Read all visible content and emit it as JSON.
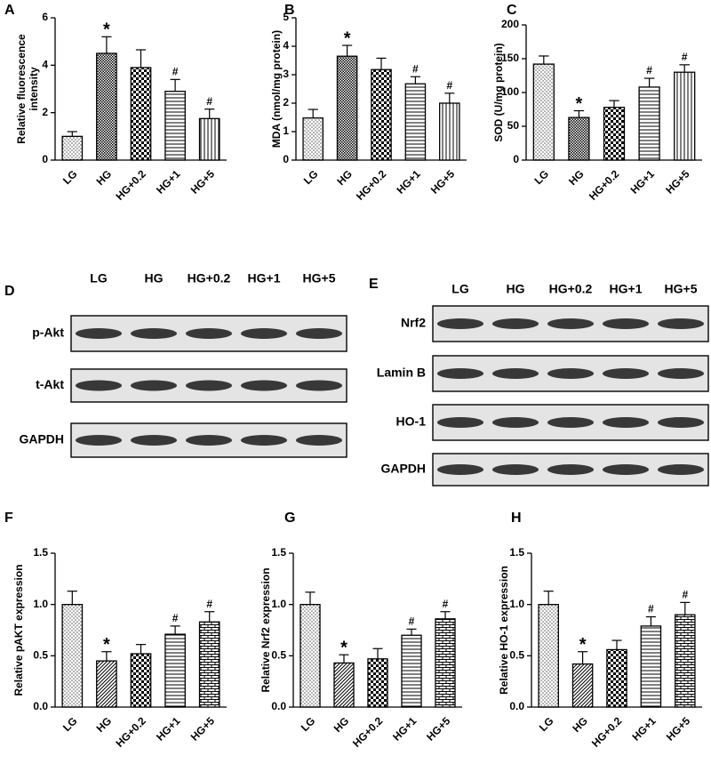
{
  "chart_data": [
    {
      "type": "bar",
      "panel": "A",
      "ylabel": [
        "Relative fluorescence",
        "intensity"
      ],
      "categories": [
        "LG",
        "HG",
        "HG+0.2",
        "HG+1",
        "HG+5"
      ],
      "values": [
        1.0,
        4.5,
        3.9,
        2.9,
        1.75
      ],
      "errors": [
        0.2,
        0.7,
        0.75,
        0.5,
        0.4
      ],
      "markers": [
        null,
        "*",
        null,
        "#",
        "#"
      ],
      "patterns": [
        "dots",
        "dense",
        "checker",
        "hlines",
        "vlines"
      ],
      "ylim": [
        0,
        6
      ],
      "yticks": [
        0,
        2,
        4,
        6
      ]
    },
    {
      "type": "bar",
      "panel": "B",
      "ylabel": "MDA (nmol/mg protein)",
      "categories": [
        "LG",
        "HG",
        "HG+0.2",
        "HG+1",
        "HG+5"
      ],
      "values": [
        1.48,
        3.65,
        3.18,
        2.68,
        2.0
      ],
      "errors": [
        0.3,
        0.38,
        0.4,
        0.25,
        0.35
      ],
      "markers": [
        null,
        "*",
        null,
        "#",
        "#"
      ],
      "patterns": [
        "dots",
        "dense",
        "checker",
        "hlines",
        "vlines"
      ],
      "ylim": [
        0,
        5
      ],
      "yticks": [
        0,
        1,
        2,
        3,
        4,
        5
      ]
    },
    {
      "type": "bar",
      "panel": "C",
      "ylabel": "SOD (U/mg protein)",
      "categories": [
        "LG",
        "HG",
        "HG+0.2",
        "HG+1",
        "HG+5"
      ],
      "values": [
        142,
        63,
        78,
        108,
        130
      ],
      "errors": [
        12,
        10,
        10,
        13,
        11
      ],
      "markers": [
        null,
        "*",
        null,
        "#",
        "#"
      ],
      "patterns": [
        "dots",
        "dense",
        "checker",
        "hlines",
        "vlines"
      ],
      "ylim": [
        0,
        200
      ],
      "yticks": [
        0,
        50,
        100,
        150,
        200
      ]
    },
    {
      "type": "bar",
      "panel": "F",
      "ylabel": "Relative pAKT expression",
      "categories": [
        "LG",
        "HG",
        "HG+0.2",
        "HG+1",
        "HG+5"
      ],
      "values": [
        1.0,
        0.45,
        0.52,
        0.71,
        0.83
      ],
      "errors": [
        0.13,
        0.09,
        0.09,
        0.08,
        0.1
      ],
      "markers": [
        null,
        "*",
        null,
        "#",
        "#"
      ],
      "patterns": [
        "dots",
        "diag",
        "checker",
        "hlines",
        "brick"
      ],
      "ylim": [
        0,
        1.5
      ],
      "yticks": [
        {
          "value": 0,
          "label": "0.0"
        },
        0.5,
        {
          "value": 1,
          "label": "1.0"
        },
        1.5
      ]
    },
    {
      "type": "bar",
      "panel": "G",
      "ylabel": "Relative Nrf2 expression",
      "categories": [
        "LG",
        "HG",
        "HG+0.2",
        "HG+1",
        "HG+5"
      ],
      "values": [
        1.0,
        0.43,
        0.47,
        0.7,
        0.86
      ],
      "errors": [
        0.12,
        0.08,
        0.1,
        0.06,
        0.07
      ],
      "markers": [
        null,
        "*",
        null,
        "#",
        "#"
      ],
      "patterns": [
        "dots",
        "diag",
        "checker",
        "hlines",
        "brick"
      ],
      "ylim": [
        0,
        1.5
      ],
      "yticks": [
        {
          "value": 0,
          "label": "0.0"
        },
        0.5,
        {
          "value": 1,
          "label": "1.0"
        },
        1.5
      ]
    },
    {
      "type": "bar",
      "panel": "H",
      "ylabel": "Relative HO-1 expression",
      "categories": [
        "LG",
        "HG",
        "HG+0.2",
        "HG+1",
        "HG+5"
      ],
      "values": [
        1.0,
        0.42,
        0.56,
        0.79,
        0.9
      ],
      "errors": [
        0.13,
        0.12,
        0.09,
        0.09,
        0.12
      ],
      "markers": [
        null,
        "*",
        null,
        "#",
        "#"
      ],
      "patterns": [
        "dots",
        "diag",
        "checker",
        "hlines",
        "brick"
      ],
      "ylim": [
        0,
        1.5
      ],
      "yticks": [
        {
          "value": 0,
          "label": "0.0"
        },
        0.5,
        {
          "value": 1,
          "label": "1.0"
        },
        1.5
      ]
    }
  ],
  "blots": [
    {
      "panel": "D",
      "lanes": [
        "LG",
        "HG",
        "HG+0.2",
        "HG+1",
        "HG+5"
      ],
      "rows": [
        "p-Akt",
        "t-Akt",
        "GAPDH"
      ]
    },
    {
      "panel": "E",
      "lanes": [
        "LG",
        "HG",
        "HG+0.2",
        "HG+1",
        "HG+5"
      ],
      "rows": [
        "Nrf2",
        "Lamin B",
        "HO-1",
        "GAPDH"
      ]
    }
  ]
}
